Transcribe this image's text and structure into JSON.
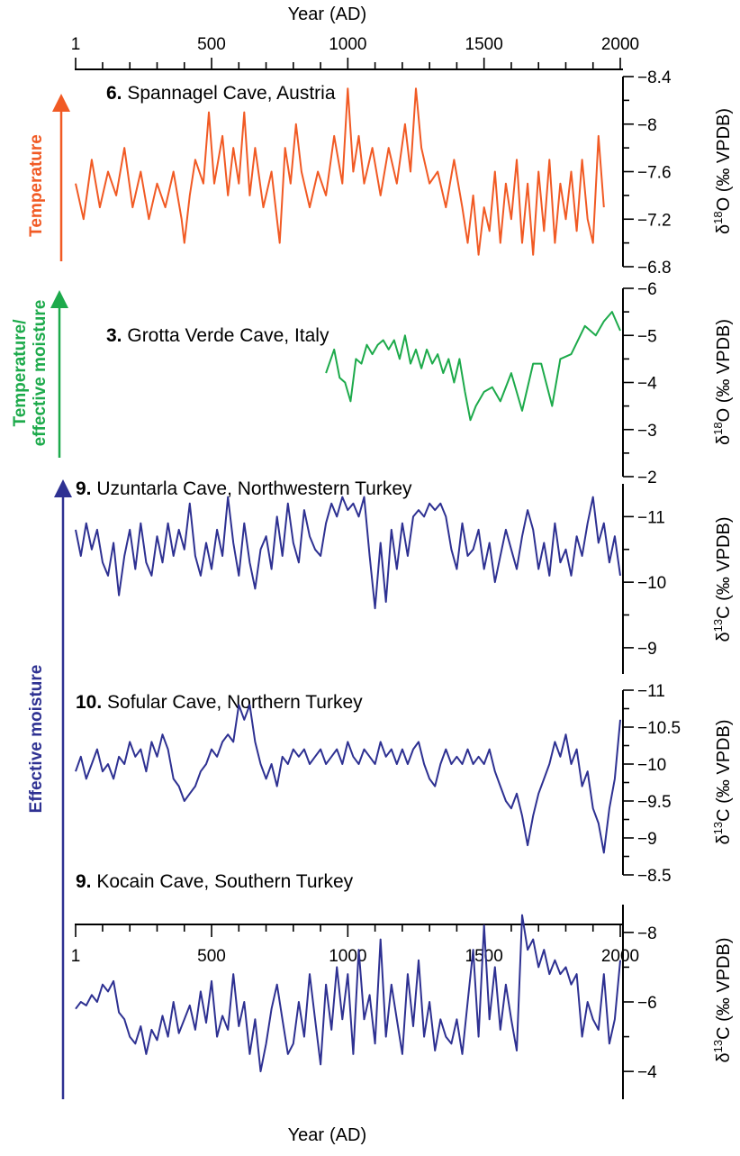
{
  "figure": {
    "top_axis_title": "Year",
    "top_axis_unit": "(AD)",
    "bottom_axis_title": "Year",
    "bottom_axis_unit": "(AD)",
    "x_ticks": [
      "1",
      "500",
      "1000",
      "1500",
      "2000"
    ]
  },
  "side_labels": [
    {
      "lines": [
        "Temperature"
      ],
      "color": "#F15A24"
    },
    {
      "lines": [
        "Temperature/",
        "effective moisture"
      ],
      "color": "#1DAA4B"
    },
    {
      "lines": [
        "Effective moisture"
      ],
      "color": "#2E3192"
    }
  ],
  "chart_data": [
    {
      "type": "line",
      "panel_num": "6.",
      "title": "Spannagel Cave, Austria",
      "ylabel": "δ18O (‰ VPDB)",
      "ylabel_parts": [
        "δ",
        "18",
        "O (‰ VPDB)"
      ],
      "color": "#F15A24",
      "xlim": [
        1,
        2000
      ],
      "ylim": [
        -6.8,
        -8.4
      ],
      "yticks": [
        "-8.4",
        "-8",
        "-7.6",
        "-7.2",
        "-6.8"
      ],
      "series": [
        {
          "x": [
            1,
            30,
            60,
            90,
            120,
            150,
            180,
            210,
            240,
            270,
            300,
            330,
            360,
            390,
            400,
            420,
            440,
            470,
            490,
            510,
            540,
            560,
            580,
            600,
            620,
            640,
            660,
            690,
            720,
            750,
            770,
            790,
            810,
            830,
            860,
            890,
            920,
            950,
            980,
            1000,
            1020,
            1040,
            1060,
            1090,
            1120,
            1150,
            1180,
            1210,
            1230,
            1250,
            1270,
            1300,
            1330,
            1360,
            1390,
            1420,
            1440,
            1460,
            1480,
            1500,
            1520,
            1540,
            1560,
            1580,
            1600,
            1620,
            1640,
            1660,
            1680,
            1700,
            1720,
            1740,
            1760,
            1780,
            1800,
            1820,
            1840,
            1860,
            1880,
            1900,
            1920,
            1940
          ],
          "y": [
            -7.5,
            -7.2,
            -7.7,
            -7.3,
            -7.6,
            -7.4,
            -7.8,
            -7.3,
            -7.6,
            -7.2,
            -7.5,
            -7.3,
            -7.6,
            -7.2,
            -7.0,
            -7.4,
            -7.7,
            -7.5,
            -8.1,
            -7.5,
            -7.9,
            -7.4,
            -7.8,
            -7.5,
            -8.1,
            -7.4,
            -7.8,
            -7.3,
            -7.6,
            -7.0,
            -7.8,
            -7.5,
            -8.0,
            -7.6,
            -7.3,
            -7.6,
            -7.4,
            -7.9,
            -7.5,
            -8.3,
            -7.6,
            -7.9,
            -7.5,
            -7.8,
            -7.4,
            -7.8,
            -7.5,
            -8.0,
            -7.6,
            -8.3,
            -7.8,
            -7.5,
            -7.6,
            -7.3,
            -7.7,
            -7.3,
            -7.0,
            -7.4,
            -6.9,
            -7.3,
            -7.1,
            -7.6,
            -7.0,
            -7.5,
            -7.2,
            -7.7,
            -7.0,
            -7.5,
            -6.9,
            -7.6,
            -7.1,
            -7.7,
            -7.0,
            -7.5,
            -7.2,
            -7.6,
            -7.1,
            -7.7,
            -7.2,
            -7.0,
            -7.9,
            -7.3
          ]
        }
      ]
    },
    {
      "type": "line",
      "panel_num": "3.",
      "title": "Grotta Verde Cave, Italy",
      "ylabel": "δ18O (‰ VPDB)",
      "ylabel_parts": [
        "δ",
        "18",
        "O (‰ VPDB)"
      ],
      "color": "#1DAA4B",
      "xlim": [
        1,
        2000
      ],
      "ylim": [
        -2,
        -6
      ],
      "yticks": [
        "-6",
        "-5",
        "-4",
        "-3",
        "-2"
      ],
      "series": [
        {
          "x": [
            920,
            950,
            970,
            990,
            1010,
            1030,
            1050,
            1070,
            1090,
            1110,
            1130,
            1150,
            1170,
            1190,
            1210,
            1230,
            1250,
            1270,
            1290,
            1310,
            1330,
            1350,
            1370,
            1390,
            1410,
            1430,
            1450,
            1470,
            1500,
            1530,
            1560,
            1600,
            1640,
            1680,
            1710,
            1750,
            1780,
            1820,
            1870,
            1910,
            1940,
            1970,
            2000
          ],
          "y": [
            -4.2,
            -4.7,
            -4.1,
            -4.0,
            -3.6,
            -4.5,
            -4.4,
            -4.8,
            -4.6,
            -4.8,
            -4.9,
            -4.7,
            -4.9,
            -4.5,
            -5.0,
            -4.4,
            -4.7,
            -4.3,
            -4.7,
            -4.4,
            -4.6,
            -4.2,
            -4.5,
            -4.0,
            -4.5,
            -3.8,
            -3.2,
            -3.5,
            -3.8,
            -3.9,
            -3.6,
            -4.2,
            -3.4,
            -4.4,
            -4.4,
            -3.5,
            -4.5,
            -4.6,
            -5.2,
            -5.0,
            -5.3,
            -5.5,
            -5.1
          ]
        }
      ]
    },
    {
      "type": "line",
      "panel_num": "9.",
      "title": "Uzuntarla Cave, Northwestern Turkey",
      "ylabel": "δ13C (‰ VPDB)",
      "ylabel_parts": [
        "δ",
        "13",
        "C (‰ VPDB)"
      ],
      "color": "#2E3192",
      "xlim": [
        1,
        2000
      ],
      "ylim": [
        -8.6,
        -11.5
      ],
      "yticks": [
        "-11",
        "-10",
        "-9"
      ],
      "series": [
        {
          "x": [
            1,
            20,
            40,
            60,
            80,
            100,
            120,
            140,
            160,
            180,
            200,
            220,
            240,
            260,
            280,
            300,
            320,
            340,
            360,
            380,
            400,
            420,
            440,
            460,
            480,
            500,
            520,
            540,
            560,
            580,
            600,
            620,
            640,
            660,
            680,
            700,
            720,
            740,
            760,
            780,
            800,
            820,
            840,
            860,
            880,
            900,
            920,
            940,
            960,
            980,
            1000,
            1020,
            1040,
            1060,
            1080,
            1100,
            1120,
            1140,
            1160,
            1180,
            1200,
            1220,
            1240,
            1260,
            1280,
            1300,
            1320,
            1340,
            1360,
            1380,
            1400,
            1420,
            1440,
            1460,
            1480,
            1500,
            1520,
            1540,
            1560,
            1580,
            1600,
            1620,
            1640,
            1660,
            1680,
            1700,
            1720,
            1740,
            1760,
            1780,
            1800,
            1820,
            1840,
            1860,
            1880,
            1900,
            1920,
            1940,
            1960,
            1980,
            2000
          ],
          "y": [
            -10.8,
            -10.4,
            -10.9,
            -10.5,
            -10.8,
            -10.3,
            -10.1,
            -10.6,
            -9.8,
            -10.4,
            -10.8,
            -10.2,
            -10.9,
            -10.3,
            -10.1,
            -10.7,
            -10.3,
            -10.9,
            -10.4,
            -10.8,
            -10.5,
            -11.2,
            -10.4,
            -10.1,
            -10.6,
            -10.2,
            -10.8,
            -10.4,
            -11.3,
            -10.6,
            -10.1,
            -10.9,
            -10.3,
            -9.9,
            -10.5,
            -10.7,
            -10.2,
            -11.0,
            -10.4,
            -11.2,
            -10.6,
            -10.3,
            -11.1,
            -10.7,
            -10.5,
            -10.4,
            -10.9,
            -11.2,
            -11.0,
            -11.3,
            -11.1,
            -11.2,
            -11.0,
            -11.3,
            -10.4,
            -9.6,
            -10.6,
            -9.7,
            -10.8,
            -10.2,
            -10.9,
            -10.4,
            -11.0,
            -11.1,
            -11.0,
            -11.2,
            -11.1,
            -11.2,
            -11.0,
            -10.5,
            -10.2,
            -10.9,
            -10.4,
            -10.5,
            -10.8,
            -10.2,
            -10.6,
            -10.0,
            -10.4,
            -10.8,
            -10.5,
            -10.2,
            -10.7,
            -11.1,
            -10.8,
            -10.2,
            -10.6,
            -10.1,
            -10.9,
            -10.3,
            -10.5,
            -10.1,
            -10.7,
            -10.4,
            -10.9,
            -11.3,
            -10.6,
            -10.9,
            -10.3,
            -10.7,
            -10.1
          ]
        }
      ]
    },
    {
      "type": "line",
      "panel_num": "10.",
      "title": "Sofular Cave, Northern Turkey",
      "ylabel": "δ13C (‰ VPDB)",
      "ylabel_parts": [
        "δ",
        "13",
        "C (‰ VPDB)"
      ],
      "color": "#2E3192",
      "xlim": [
        1,
        2000
      ],
      "ylim": [
        -8.5,
        -11
      ],
      "yticks": [
        "-11",
        "-10.5",
        "-10",
        "-9.5",
        "-9",
        "-8.5"
      ],
      "series": [
        {
          "x": [
            1,
            20,
            40,
            60,
            80,
            100,
            120,
            140,
            160,
            180,
            200,
            220,
            240,
            260,
            280,
            300,
            320,
            340,
            360,
            380,
            400,
            420,
            440,
            460,
            480,
            500,
            520,
            540,
            560,
            580,
            600,
            620,
            640,
            660,
            680,
            700,
            720,
            740,
            760,
            780,
            800,
            820,
            840,
            860,
            880,
            900,
            920,
            940,
            960,
            980,
            1000,
            1020,
            1040,
            1060,
            1080,
            1100,
            1120,
            1140,
            1160,
            1180,
            1200,
            1220,
            1240,
            1260,
            1280,
            1300,
            1320,
            1340,
            1360,
            1380,
            1400,
            1420,
            1440,
            1460,
            1480,
            1500,
            1520,
            1540,
            1560,
            1580,
            1600,
            1620,
            1640,
            1660,
            1680,
            1700,
            1720,
            1740,
            1760,
            1780,
            1800,
            1820,
            1840,
            1860,
            1880,
            1900,
            1920,
            1940,
            1960,
            1980,
            2000
          ],
          "y": [
            -9.9,
            -10.1,
            -9.8,
            -10.0,
            -10.2,
            -9.9,
            -10.0,
            -9.8,
            -10.1,
            -10.0,
            -10.3,
            -10.1,
            -10.2,
            -9.9,
            -10.3,
            -10.1,
            -10.4,
            -10.2,
            -9.8,
            -9.7,
            -9.5,
            -9.6,
            -9.7,
            -9.9,
            -10.0,
            -10.2,
            -10.1,
            -10.3,
            -10.4,
            -10.3,
            -10.8,
            -10.6,
            -10.8,
            -10.3,
            -10.0,
            -9.8,
            -10.0,
            -9.7,
            -10.1,
            -10.0,
            -10.2,
            -10.1,
            -10.2,
            -10.0,
            -10.1,
            -10.2,
            -10.0,
            -10.1,
            -10.2,
            -10.0,
            -10.3,
            -10.1,
            -10.0,
            -10.2,
            -10.1,
            -10.0,
            -10.3,
            -10.1,
            -10.2,
            -10.0,
            -10.2,
            -10.0,
            -10.2,
            -10.3,
            -10.0,
            -9.8,
            -9.7,
            -10.0,
            -10.2,
            -10.0,
            -10.1,
            -10.0,
            -10.2,
            -10.0,
            -10.1,
            -10.0,
            -10.2,
            -9.9,
            -9.7,
            -9.5,
            -9.4,
            -9.6,
            -9.3,
            -8.9,
            -9.3,
            -9.6,
            -9.8,
            -10.0,
            -10.3,
            -10.1,
            -10.4,
            -10.0,
            -10.2,
            -9.7,
            -9.9,
            -9.4,
            -9.2,
            -8.8,
            -9.4,
            -9.8,
            -10.6
          ]
        }
      ]
    },
    {
      "type": "line",
      "panel_num": "9.",
      "title": "Kocain Cave, Southern Turkey",
      "ylabel": "δ13C (‰ VPDB)",
      "ylabel_parts": [
        "δ",
        "13",
        "C (‰ VPDB)"
      ],
      "color": "#2E3192",
      "xlim": [
        1,
        2000
      ],
      "ylim": [
        -3.2,
        -8.8
      ],
      "yticks": [
        "-8",
        "-6",
        "-4"
      ],
      "series": [
        {
          "x": [
            1,
            20,
            40,
            60,
            80,
            100,
            120,
            140,
            160,
            180,
            200,
            220,
            240,
            260,
            280,
            300,
            320,
            340,
            360,
            380,
            400,
            420,
            440,
            460,
            480,
            500,
            520,
            540,
            560,
            580,
            600,
            620,
            640,
            660,
            680,
            700,
            720,
            740,
            760,
            780,
            800,
            820,
            840,
            860,
            880,
            900,
            920,
            940,
            960,
            980,
            1000,
            1020,
            1040,
            1060,
            1080,
            1100,
            1120,
            1140,
            1160,
            1180,
            1200,
            1220,
            1240,
            1260,
            1280,
            1300,
            1320,
            1340,
            1360,
            1380,
            1400,
            1420,
            1440,
            1460,
            1480,
            1500,
            1520,
            1540,
            1560,
            1580,
            1600,
            1620,
            1640,
            1660,
            1680,
            1700,
            1720,
            1740,
            1760,
            1780,
            1800,
            1820,
            1840,
            1860,
            1880,
            1900,
            1920,
            1940,
            1960,
            1980,
            2000
          ],
          "y": [
            -5.8,
            -6.0,
            -5.9,
            -6.2,
            -6.0,
            -6.5,
            -6.3,
            -6.6,
            -5.7,
            -5.5,
            -5.0,
            -4.8,
            -5.3,
            -4.5,
            -5.2,
            -4.9,
            -5.6,
            -5.0,
            -6.0,
            -5.1,
            -5.5,
            -5.9,
            -5.2,
            -6.3,
            -5.4,
            -6.6,
            -5.0,
            -5.6,
            -5.2,
            -6.8,
            -5.3,
            -6.0,
            -4.5,
            -5.5,
            -4.0,
            -4.8,
            -5.8,
            -6.5,
            -5.5,
            -4.5,
            -4.8,
            -6.0,
            -5.0,
            -6.8,
            -5.5,
            -4.2,
            -6.5,
            -5.2,
            -7.0,
            -5.5,
            -6.8,
            -4.5,
            -7.5,
            -5.5,
            -6.2,
            -4.8,
            -7.8,
            -5.0,
            -6.5,
            -5.5,
            -4.5,
            -6.8,
            -5.3,
            -7.2,
            -5.0,
            -6.0,
            -4.6,
            -5.5,
            -5.0,
            -4.8,
            -5.5,
            -4.5,
            -6.0,
            -7.5,
            -5.0,
            -8.2,
            -5.5,
            -7.0,
            -5.2,
            -6.5,
            -5.5,
            -4.6,
            -8.5,
            -7.5,
            -7.8,
            -7.0,
            -7.5,
            -6.8,
            -7.2,
            -6.8,
            -7.0,
            -6.5,
            -6.8,
            -5.0,
            -6.0,
            -5.5,
            -5.2,
            -6.8,
            -4.8,
            -5.5,
            -7.2
          ]
        }
      ]
    }
  ]
}
